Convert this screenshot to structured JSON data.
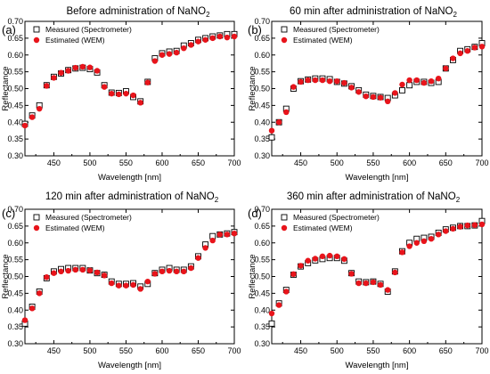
{
  "x_ticks": [
    450,
    500,
    550,
    600,
    650,
    700
  ],
  "y_ticks": [
    "0.30",
    "0.35",
    "0.40",
    "0.45",
    "0.50",
    "0.55",
    "0.60",
    "0.65",
    "0.70"
  ],
  "chart_data": [
    {
      "type": "scatter",
      "panel_label": "(a)",
      "title": "Before administration of NaNO",
      "title_subscript": "2",
      "xlabel": "Wavelength [nm]",
      "ylabel": "Reflectance",
      "xlim": [
        410,
        700
      ],
      "ylim": [
        0.3,
        0.7
      ],
      "legend_position": "top-left",
      "x": [
        410,
        420,
        430,
        440,
        450,
        460,
        470,
        480,
        490,
        500,
        510,
        520,
        530,
        540,
        550,
        560,
        570,
        580,
        590,
        600,
        610,
        620,
        630,
        640,
        650,
        660,
        670,
        680,
        690,
        700
      ],
      "series": [
        {
          "name": "Measured (Spectrometer)",
          "marker": "open-square",
          "color": "#000000",
          "values": [
            0.395,
            0.42,
            0.45,
            0.51,
            0.535,
            0.545,
            0.555,
            0.56,
            0.562,
            0.558,
            0.548,
            0.51,
            0.488,
            0.487,
            0.492,
            0.475,
            0.462,
            0.52,
            0.59,
            0.605,
            0.61,
            0.612,
            0.628,
            0.635,
            0.645,
            0.65,
            0.655,
            0.658,
            0.662,
            0.662
          ]
        },
        {
          "name": "Estimated (WEM)",
          "marker": "filled-circle",
          "color": "#e8141b",
          "values": [
            0.39,
            0.415,
            0.44,
            0.508,
            0.532,
            0.547,
            0.553,
            0.562,
            0.565,
            0.563,
            0.553,
            0.505,
            0.485,
            0.483,
            0.485,
            0.48,
            0.458,
            0.518,
            0.582,
            0.6,
            0.603,
            0.607,
            0.62,
            0.63,
            0.64,
            0.645,
            0.65,
            0.655,
            0.652,
            0.655
          ]
        }
      ]
    },
    {
      "type": "scatter",
      "panel_label": "(b)",
      "title": "60 min after administration of NaNO",
      "title_subscript": "2",
      "xlabel": "Wavelength [nm]",
      "ylabel": "Reflectance",
      "xlim": [
        410,
        700
      ],
      "ylim": [
        0.3,
        0.7
      ],
      "legend_position": "top-left",
      "x": [
        410,
        420,
        430,
        440,
        450,
        460,
        470,
        480,
        490,
        500,
        510,
        520,
        530,
        540,
        550,
        560,
        570,
        580,
        590,
        600,
        610,
        620,
        630,
        640,
        650,
        660,
        670,
        680,
        690,
        700
      ],
      "series": [
        {
          "name": "Measured (Spectrometer)",
          "marker": "open-square",
          "color": "#000000",
          "values": [
            0.355,
            0.4,
            0.44,
            0.5,
            0.522,
            0.527,
            0.53,
            0.53,
            0.528,
            0.52,
            0.515,
            0.507,
            0.495,
            0.482,
            0.478,
            0.475,
            0.472,
            0.48,
            0.495,
            0.51,
            0.52,
            0.52,
            0.517,
            0.52,
            0.56,
            0.585,
            0.612,
            0.617,
            0.624,
            0.635
          ]
        },
        {
          "name": "Estimated (WEM)",
          "marker": "filled-circle",
          "color": "#e8141b",
          "values": [
            0.375,
            0.4,
            0.43,
            0.505,
            0.52,
            0.525,
            0.525,
            0.525,
            0.522,
            0.522,
            0.517,
            0.503,
            0.49,
            0.477,
            0.475,
            0.473,
            0.462,
            0.487,
            0.512,
            0.525,
            0.525,
            0.517,
            0.522,
            0.53,
            0.56,
            0.59,
            0.605,
            0.612,
            0.622,
            0.625
          ]
        }
      ]
    },
    {
      "type": "scatter",
      "panel_label": "(c)",
      "title": "120 min after administration of NaNO",
      "title_subscript": "2",
      "xlabel": "Wavelength [nm]",
      "ylabel": "Reflectance",
      "xlim": [
        410,
        700
      ],
      "ylim": [
        0.3,
        0.7
      ],
      "legend_position": "top-left",
      "x": [
        410,
        420,
        430,
        440,
        450,
        460,
        470,
        480,
        490,
        500,
        510,
        520,
        530,
        540,
        550,
        560,
        570,
        580,
        590,
        600,
        610,
        620,
        630,
        640,
        650,
        660,
        670,
        680,
        690,
        700
      ],
      "series": [
        {
          "name": "Measured (Spectrometer)",
          "marker": "open-square",
          "color": "#000000",
          "values": [
            0.36,
            0.41,
            0.455,
            0.495,
            0.515,
            0.522,
            0.525,
            0.525,
            0.525,
            0.518,
            0.51,
            0.505,
            0.485,
            0.478,
            0.478,
            0.48,
            0.47,
            0.478,
            0.51,
            0.52,
            0.525,
            0.52,
            0.52,
            0.53,
            0.56,
            0.595,
            0.62,
            0.625,
            0.628,
            0.632
          ]
        },
        {
          "name": "Estimated (WEM)",
          "marker": "filled-circle",
          "color": "#e8141b",
          "values": [
            0.37,
            0.405,
            0.45,
            0.498,
            0.51,
            0.515,
            0.517,
            0.52,
            0.52,
            0.518,
            0.512,
            0.503,
            0.48,
            0.473,
            0.473,
            0.475,
            0.463,
            0.485,
            0.508,
            0.515,
            0.517,
            0.515,
            0.515,
            0.525,
            0.555,
            0.585,
            0.607,
            0.625,
            0.625,
            0.628
          ]
        }
      ]
    },
    {
      "type": "scatter",
      "panel_label": "(d)",
      "title": "360 min after administration of NaNO",
      "title_subscript": "2",
      "xlabel": "Wavelength [nm]",
      "ylabel": "Reflectance",
      "xlim": [
        410,
        700
      ],
      "ylim": [
        0.3,
        0.7
      ],
      "legend_position": "top-left",
      "x": [
        410,
        420,
        430,
        440,
        450,
        460,
        470,
        480,
        490,
        500,
        510,
        520,
        530,
        540,
        550,
        560,
        570,
        580,
        590,
        600,
        610,
        620,
        630,
        640,
        650,
        660,
        670,
        680,
        690,
        700
      ],
      "series": [
        {
          "name": "Measured (Spectrometer)",
          "marker": "open-square",
          "color": "#000000",
          "values": [
            0.36,
            0.42,
            0.46,
            0.505,
            0.53,
            0.54,
            0.548,
            0.552,
            0.555,
            0.555,
            0.547,
            0.51,
            0.485,
            0.483,
            0.485,
            0.478,
            0.455,
            0.515,
            0.575,
            0.6,
            0.612,
            0.615,
            0.618,
            0.63,
            0.64,
            0.645,
            0.65,
            0.65,
            0.652,
            0.665
          ]
        },
        {
          "name": "Estimated (WEM)",
          "marker": "filled-circle",
          "color": "#e8141b",
          "values": [
            0.39,
            0.415,
            0.455,
            0.507,
            0.532,
            0.547,
            0.553,
            0.56,
            0.562,
            0.56,
            0.552,
            0.508,
            0.48,
            0.48,
            0.483,
            0.475,
            0.46,
            0.512,
            0.572,
            0.59,
            0.6,
            0.605,
            0.612,
            0.625,
            0.635,
            0.642,
            0.648,
            0.652,
            0.653,
            0.655
          ]
        }
      ]
    }
  ]
}
